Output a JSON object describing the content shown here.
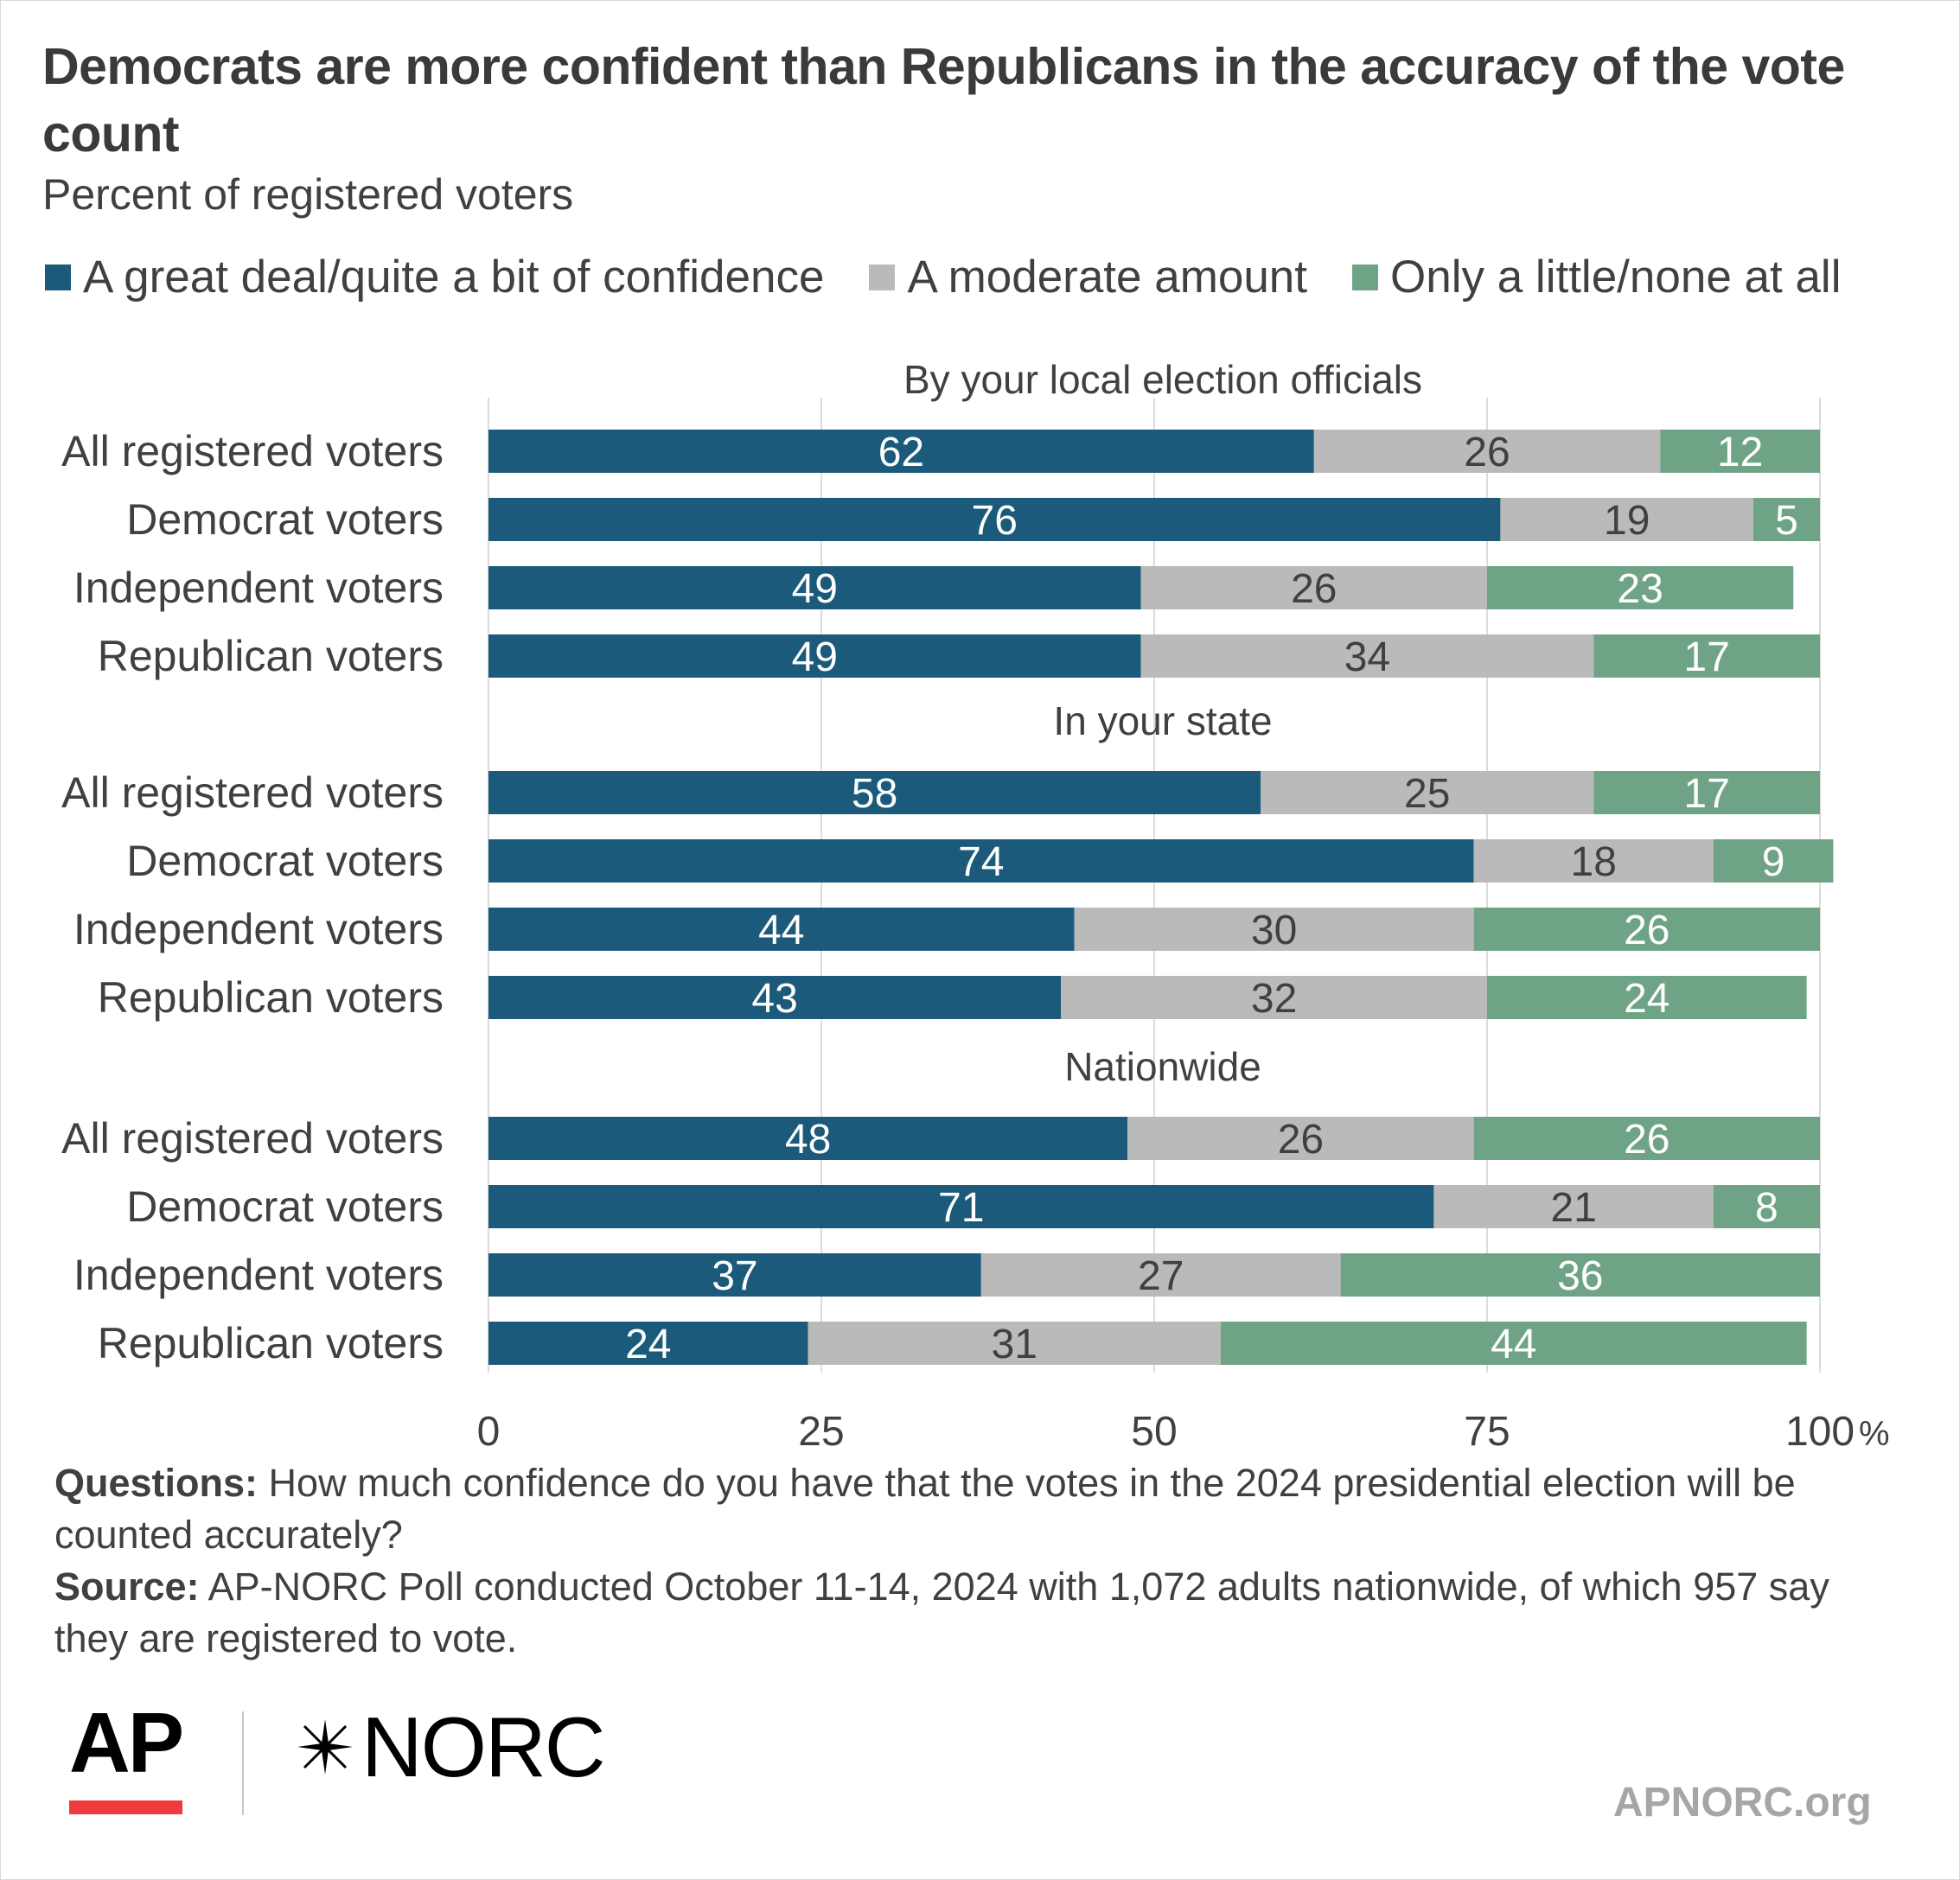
{
  "title": "Democrats are more confident than Republicans in the accuracy of the vote count",
  "subtitle": "Percent of registered voters",
  "legend": [
    {
      "label": "A great deal/quite a bit of confidence",
      "color": "#1b5a7a"
    },
    {
      "label": "A moderate amount",
      "color": "#bababa"
    },
    {
      "label": "Only a little/none at all",
      "color": "#6fa386"
    }
  ],
  "chart_data": {
    "type": "bar",
    "orientation": "horizontal",
    "stacked": true,
    "xlim": [
      0,
      100
    ],
    "x_ticks": [
      "0",
      "25",
      "50",
      "75",
      "100"
    ],
    "x_unit": "%",
    "grid": true,
    "legend_position": "top",
    "series_names": [
      "A great deal/quite a bit of confidence",
      "A moderate amount",
      "Only a little/none at all"
    ],
    "series_colors": [
      "#1b5a7a",
      "#bababa",
      "#6fa386"
    ],
    "label_colors": [
      "#ffffff",
      "#404040",
      "#ffffff"
    ],
    "groups": [
      {
        "title": "By your local election officials",
        "rows": [
          {
            "label": "All registered voters",
            "values": [
              62,
              26,
              12
            ]
          },
          {
            "label": "Democrat voters",
            "values": [
              76,
              19,
              5
            ]
          },
          {
            "label": "Independent voters",
            "values": [
              49,
              26,
              23
            ]
          },
          {
            "label": "Republican voters",
            "values": [
              49,
              34,
              17
            ]
          }
        ]
      },
      {
        "title": "In your state",
        "rows": [
          {
            "label": "All registered voters",
            "values": [
              58,
              25,
              17
            ]
          },
          {
            "label": "Democrat voters",
            "values": [
              74,
              18,
              9
            ]
          },
          {
            "label": "Independent voters",
            "values": [
              44,
              30,
              26
            ]
          },
          {
            "label": "Republican voters",
            "values": [
              43,
              32,
              24
            ]
          }
        ]
      },
      {
        "title": "Nationwide",
        "rows": [
          {
            "label": "All registered voters",
            "values": [
              48,
              26,
              26
            ]
          },
          {
            "label": "Democrat voters",
            "values": [
              71,
              21,
              8
            ]
          },
          {
            "label": "Independent voters",
            "values": [
              37,
              27,
              36
            ]
          },
          {
            "label": "Republican voters",
            "values": [
              24,
              31,
              44
            ]
          }
        ]
      }
    ]
  },
  "footnote": {
    "questions_label": "Questions:",
    "questions_text": "How much confidence do you have that the votes in the 2024 presidential election will be counted accurately?",
    "source_label": "Source:",
    "source_text": "AP-NORC Poll conducted October 11-14, 2024 with 1,072 adults nationwide, of which 957 say they are registered to vote."
  },
  "logos": {
    "ap": "AP",
    "norc": "NORC",
    "norc_icon": "star-burst-icon"
  },
  "site": "APNORC.org"
}
